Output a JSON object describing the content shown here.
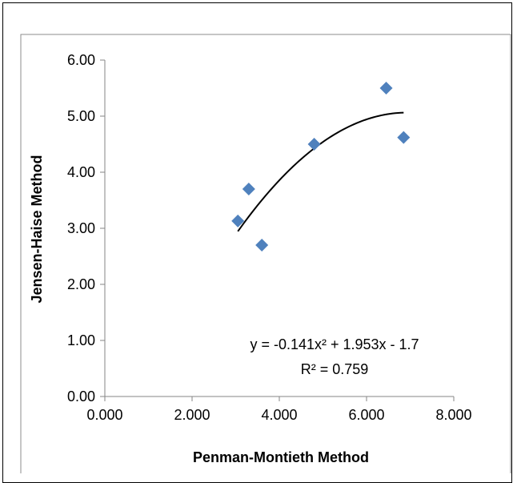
{
  "chart_data": {
    "type": "scatter",
    "xlabel": "Penman-Montieth Method",
    "ylabel": "Jensen-Haise Method",
    "xlim": [
      0,
      8
    ],
    "ylim": [
      0,
      6
    ],
    "x_ticks": [
      "0.000",
      "2.000",
      "4.000",
      "6.000",
      "8.000"
    ],
    "y_ticks": [
      "0.00",
      "1.00",
      "2.00",
      "3.00",
      "4.00",
      "5.00",
      "6.00"
    ],
    "grid": false,
    "legend": "none",
    "marker": "diamond",
    "marker_color": "#4F81BD",
    "trendline_color": "#000000",
    "points": [
      {
        "x": 3.05,
        "y": 3.13
      },
      {
        "x": 3.3,
        "y": 3.7
      },
      {
        "x": 3.6,
        "y": 2.7
      },
      {
        "x": 4.8,
        "y": 4.5
      },
      {
        "x": 6.45,
        "y": 5.5
      },
      {
        "x": 6.85,
        "y": 4.62
      }
    ],
    "trendline": {
      "type": "polynomial",
      "coefficients": [
        -0.141,
        1.953,
        -1.7
      ],
      "x_range": [
        3.05,
        6.85
      ],
      "equation": "y = -0.141x² + 1.953x - 1.7",
      "r_squared": "R² = 0.759"
    }
  }
}
